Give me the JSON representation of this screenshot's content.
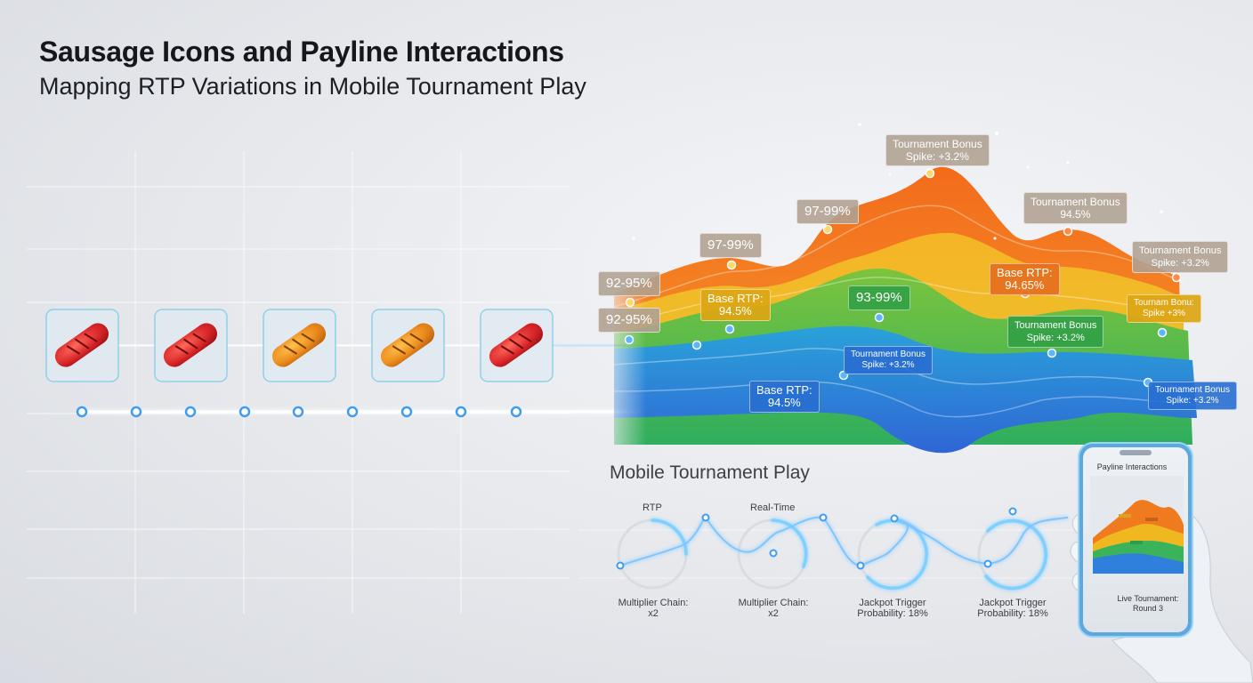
{
  "title": "Sausage Icons and Payline Interactions",
  "subtitle": "Mapping RTP Variations in Mobile Tournament Play",
  "reel_icons": [
    "sausage-red-icon",
    "sausage-red-icon",
    "sausage-orange-icon",
    "sausage-orange-icon",
    "sausage-red-icon"
  ],
  "chart_labels": {
    "l92a": "92-95%",
    "l92b": "92-95%",
    "l97a": "97-99%",
    "l97b": "97-99%",
    "tb_top_1": "Tournament Bonus",
    "tb_top_2": "Spike: +3.2%",
    "base_yellow_1": "Base RTP:",
    "base_yellow_2": "94.5%",
    "l93": "93-99%",
    "tb_mid_1": "Tournament Bonus",
    "tb_mid_2": "Spike: +3.2%",
    "base_blue_1": "Base RTP:",
    "base_blue_2": "94.5%",
    "tb_right_1": "Tournament Bonus",
    "tb_right_2": "94.5%",
    "base_orange_1": "Base RTP:",
    "base_orange_2": "94.65%",
    "tb_far_1": "Tournament Bonus",
    "tb_far_2": "Spike: +3.2%",
    "tb_green_1": "Tournament Bonus",
    "tb_green_2": "Spike: +3.2%",
    "tb_yellow_small_1": "Tournam Bonu:",
    "tb_yellow_small_2": "Spike +3%",
    "tb_blue_r_1": "Tournament Bonus",
    "tb_blue_r_2": "Spike: +3.2%"
  },
  "mobile": {
    "title": "Mobile Tournament Play",
    "gauge_top_1": "RTP",
    "gauge_top_2": "Real-Time",
    "gauge_bottom_1a": "Multiplier Chain:",
    "gauge_bottom_1b": "x2",
    "gauge_bottom_2a": "Multiplier Chain:",
    "gauge_bottom_2b": "x2",
    "gauge_bottom_3a": "Jackpot Trigger",
    "gauge_bottom_3b": "Probability: 18%",
    "gauge_bottom_4a": "Jackpot Trigger",
    "gauge_bottom_4b": "Probability: 18%"
  },
  "phone": {
    "title": "Payline Interactions",
    "footer_1": "Live Tournament:",
    "footer_2": "Round 3"
  },
  "colors": {
    "orange": "#f07a1e",
    "yellow": "#f0b820",
    "green": "#3bb35a",
    "blue": "#2f7fdc",
    "glow": "#6fb8ff"
  }
}
